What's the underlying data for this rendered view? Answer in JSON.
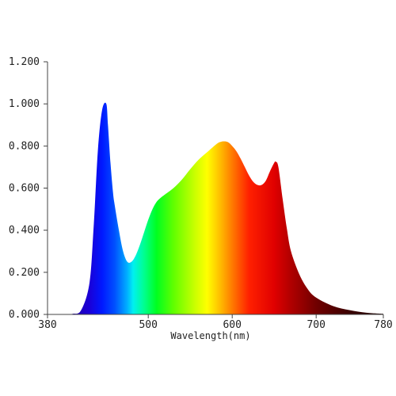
{
  "chart_data": {
    "type": "area",
    "title": "",
    "xlabel": "Wavelength(nm)",
    "ylabel": "",
    "xlim": [
      380,
      780
    ],
    "ylim": [
      0,
      1.2
    ],
    "grid": false,
    "x_ticks": [
      380,
      500,
      600,
      700,
      780
    ],
    "x_tick_labels": [
      "380",
      "500",
      "600",
      "700",
      "780"
    ],
    "y_ticks": [
      0,
      0.2,
      0.4,
      0.6,
      0.8,
      1.0,
      1.2
    ],
    "y_tick_labels": [
      "0.000",
      "0.200",
      "0.400",
      "0.600",
      "0.800",
      "1.000",
      "1.200"
    ],
    "fill": "visible-spectrum color gradient",
    "series": [
      {
        "x": [
          400,
          410,
          420,
          430,
          435,
          440,
          445,
          450,
          452,
          455,
          458,
          460,
          465,
          470,
          475,
          480,
          485,
          490,
          495,
          500,
          505,
          510,
          515,
          520,
          530,
          540,
          550,
          560,
          570,
          580,
          585,
          590,
          595,
          600,
          605,
          610,
          615,
          620,
          625,
          630,
          635,
          640,
          645,
          650,
          652,
          655,
          660,
          665,
          670,
          680,
          690,
          700,
          720,
          740,
          760,
          780
        ],
        "values": [
          0.0,
          0.003,
          0.02,
          0.15,
          0.42,
          0.78,
          0.97,
          1.0,
          0.9,
          0.72,
          0.58,
          0.52,
          0.4,
          0.3,
          0.25,
          0.25,
          0.28,
          0.33,
          0.39,
          0.45,
          0.5,
          0.535,
          0.555,
          0.57,
          0.6,
          0.64,
          0.69,
          0.735,
          0.77,
          0.805,
          0.818,
          0.822,
          0.818,
          0.8,
          0.775,
          0.74,
          0.7,
          0.66,
          0.63,
          0.615,
          0.615,
          0.635,
          0.68,
          0.72,
          0.725,
          0.7,
          0.55,
          0.41,
          0.3,
          0.19,
          0.12,
          0.08,
          0.04,
          0.02,
          0.008,
          0.003
        ]
      }
    ]
  }
}
